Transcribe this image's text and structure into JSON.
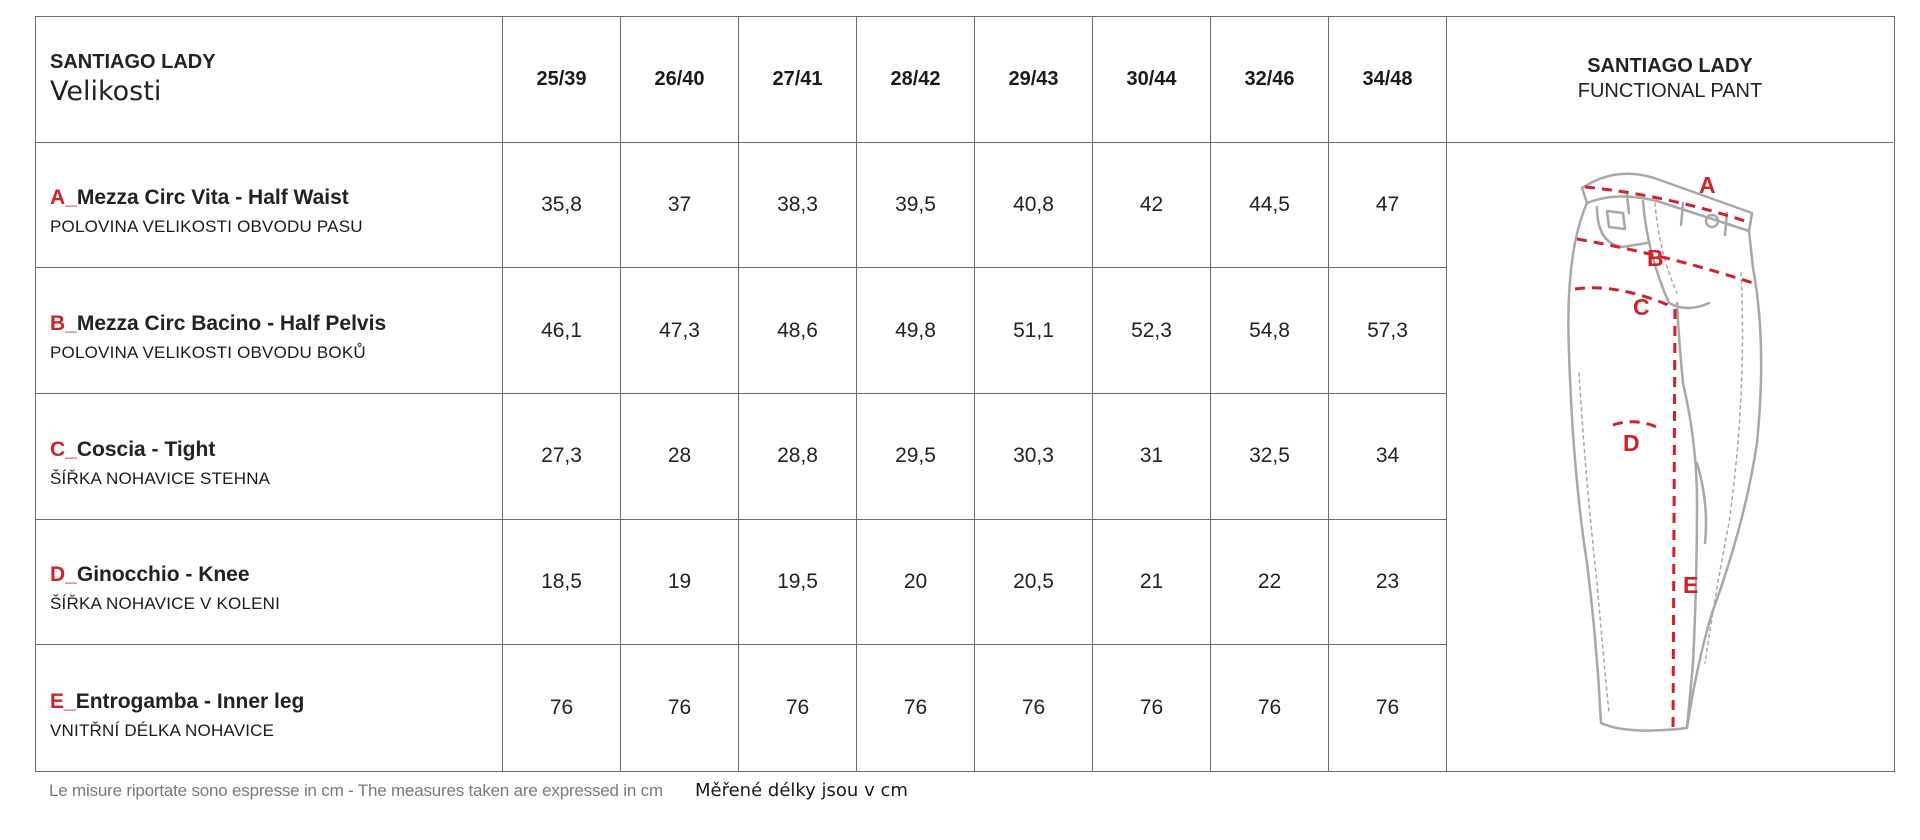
{
  "header": {
    "brand_title": "SANTIAGO LADY",
    "sizes_label": "Velikosti",
    "sizes": [
      "25/39",
      "26/40",
      "27/41",
      "28/42",
      "29/43",
      "30/44",
      "32/46",
      "34/48"
    ],
    "product_title": "SANTIAGO LADY",
    "product_subtitle": "FUNCTIONAL PANT"
  },
  "rows": [
    {
      "letter": "A_",
      "name": "Mezza Circ Vita - Half Waist",
      "sub": "POLOVINA VELIKOSTI OBVODU PASU",
      "values": [
        "35,8",
        "37",
        "38,3",
        "39,5",
        "40,8",
        "42",
        "44,5",
        "47"
      ]
    },
    {
      "letter": "B_",
      "name": "Mezza Circ Bacino - Half Pelvis",
      "sub": "POLOVINA VELIKOSTI OBVODU BOKŮ",
      "values": [
        "46,1",
        "47,3",
        "48,6",
        "49,8",
        "51,1",
        "52,3",
        "54,8",
        "57,3"
      ]
    },
    {
      "letter": "C_",
      "name": "Coscia - Tight",
      "sub": "ŠÍŘKA NOHAVICE STEHNA",
      "values": [
        "27,3",
        "28",
        "28,8",
        "29,5",
        "30,3",
        "31",
        "32,5",
        "34"
      ]
    },
    {
      "letter": "D_",
      "name": "Ginocchio - Knee",
      "sub": "ŠÍŘKA NOHAVICE V KOLENI",
      "values": [
        "18,5",
        "19",
        "19,5",
        "20",
        "20,5",
        "21",
        "22",
        "23"
      ]
    },
    {
      "letter": "E_",
      "name": "Entrogamba - Inner leg",
      "sub": "VNITŘNÍ DÉLKA NOHAVICE",
      "values": [
        "76",
        "76",
        "76",
        "76",
        "76",
        "76",
        "76",
        "76"
      ]
    }
  ],
  "diagram": {
    "labels": [
      "A",
      "B",
      "C",
      "D",
      "E"
    ],
    "accent_color": "#d0202a",
    "outline_color": "#a8a8a8"
  },
  "footnote": {
    "it_en": "Le misure riportate sono espresse in cm - The measures taken are expressed in cm",
    "cz": "Měřené délky jsou v cm"
  }
}
